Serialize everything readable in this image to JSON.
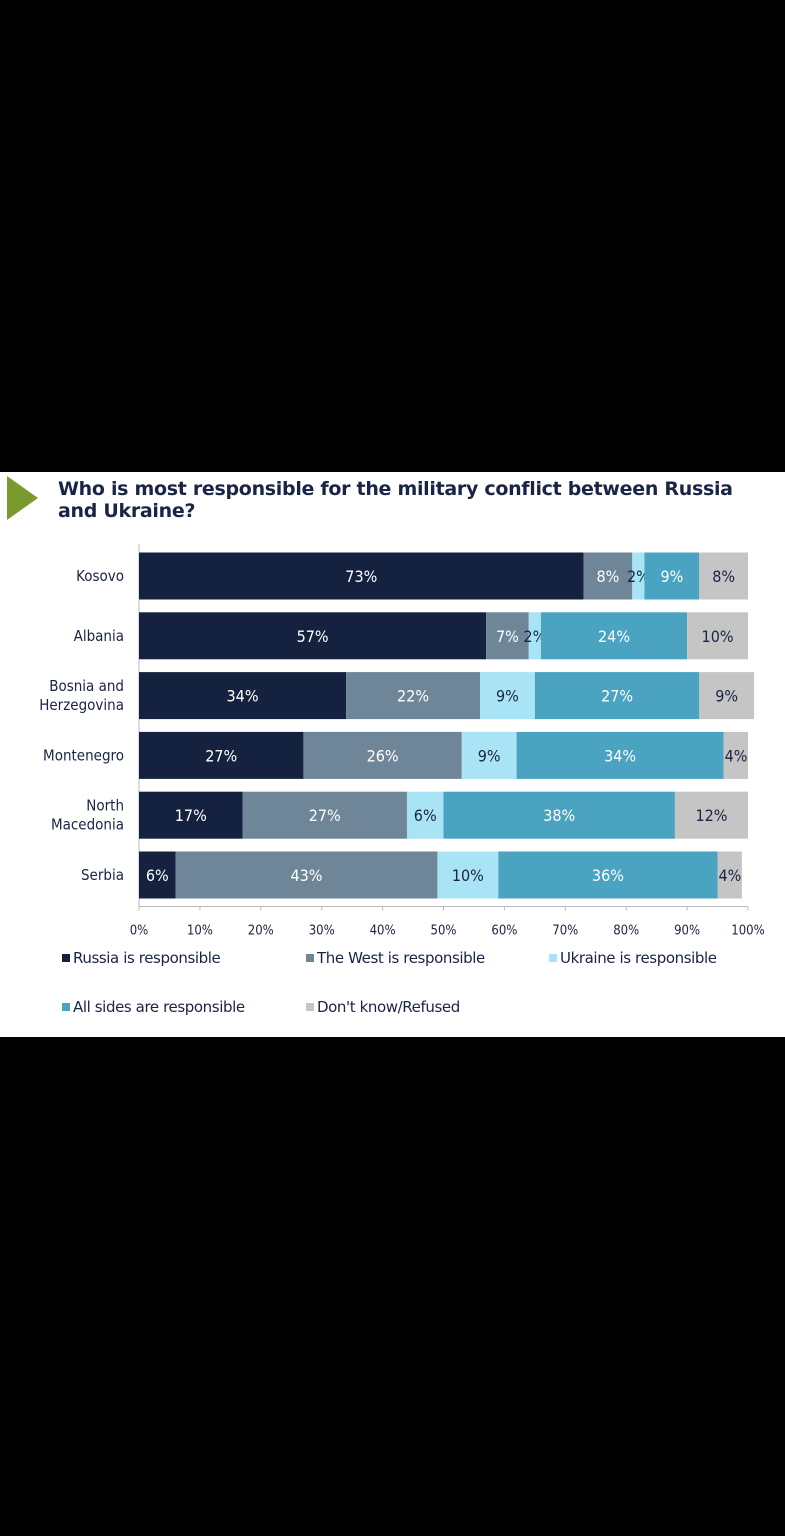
{
  "chart_data": {
    "type": "bar",
    "orientation": "horizontal",
    "stacked": true,
    "title": "Who is most responsible for the military conflict between Russia and Ukraine?",
    "categories": [
      "Kosovo",
      "Albania",
      "Bosnia and Herzegovina",
      "Montenegro",
      "North Macedonia",
      "Serbia"
    ],
    "category_lines": [
      [
        "Kosovo"
      ],
      [
        "Albania"
      ],
      [
        "Bosnia and",
        "Herzegovina"
      ],
      [
        "Montenegro"
      ],
      [
        "North",
        "Macedonia"
      ],
      [
        "Serbia"
      ]
    ],
    "series": [
      {
        "name": "Russia is responsible",
        "color": "#15223f",
        "label_color": "#ffffff",
        "values": [
          73,
          57,
          34,
          27,
          17,
          6
        ]
      },
      {
        "name": "The West is responsible",
        "color": "#6e8698",
        "label_color": "#ffffff",
        "values": [
          8,
          7,
          22,
          26,
          27,
          43
        ]
      },
      {
        "name": "Ukraine is responsible",
        "color": "#a8e4f5",
        "label_color": "#1a2444",
        "values": [
          2,
          2,
          9,
          9,
          6,
          10
        ]
      },
      {
        "name": "All sides are responsible",
        "color": "#4aa3c1",
        "label_color": "#ffffff",
        "values": [
          9,
          24,
          27,
          34,
          38,
          36
        ]
      },
      {
        "name": "Don't know/Refused",
        "color": "#c5c5c5",
        "label_color": "#1a2444",
        "values": [
          8,
          10,
          9,
          4,
          12,
          4
        ]
      }
    ],
    "xlim": [
      0,
      100
    ],
    "xticks": [
      "0%",
      "10%",
      "20%",
      "30%",
      "40%",
      "50%",
      "60%",
      "70%",
      "80%",
      "90%",
      "100%"
    ],
    "value_format": "%",
    "legend_position": "bottom",
    "accent_color": "#7a9a2e"
  }
}
